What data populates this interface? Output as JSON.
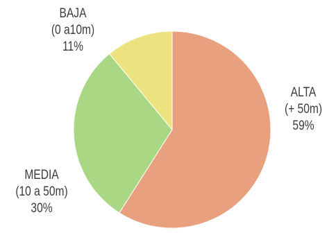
{
  "chart_data": {
    "type": "pie",
    "slices": [
      {
        "category": "ALTA",
        "range": "(+ 50m)",
        "value": 59,
        "percent_label": "59%",
        "color": "#e9a07e"
      },
      {
        "category": "MEDIA",
        "range": "(10 a 50m)",
        "value": 30,
        "percent_label": "30%",
        "color": "#a9d784"
      },
      {
        "category": "BAJA",
        "range": "(0 a10m)",
        "value": 11,
        "percent_label": "11%",
        "color": "#ece27f"
      }
    ],
    "start": "12 o'clock",
    "direction": "clockwise"
  }
}
